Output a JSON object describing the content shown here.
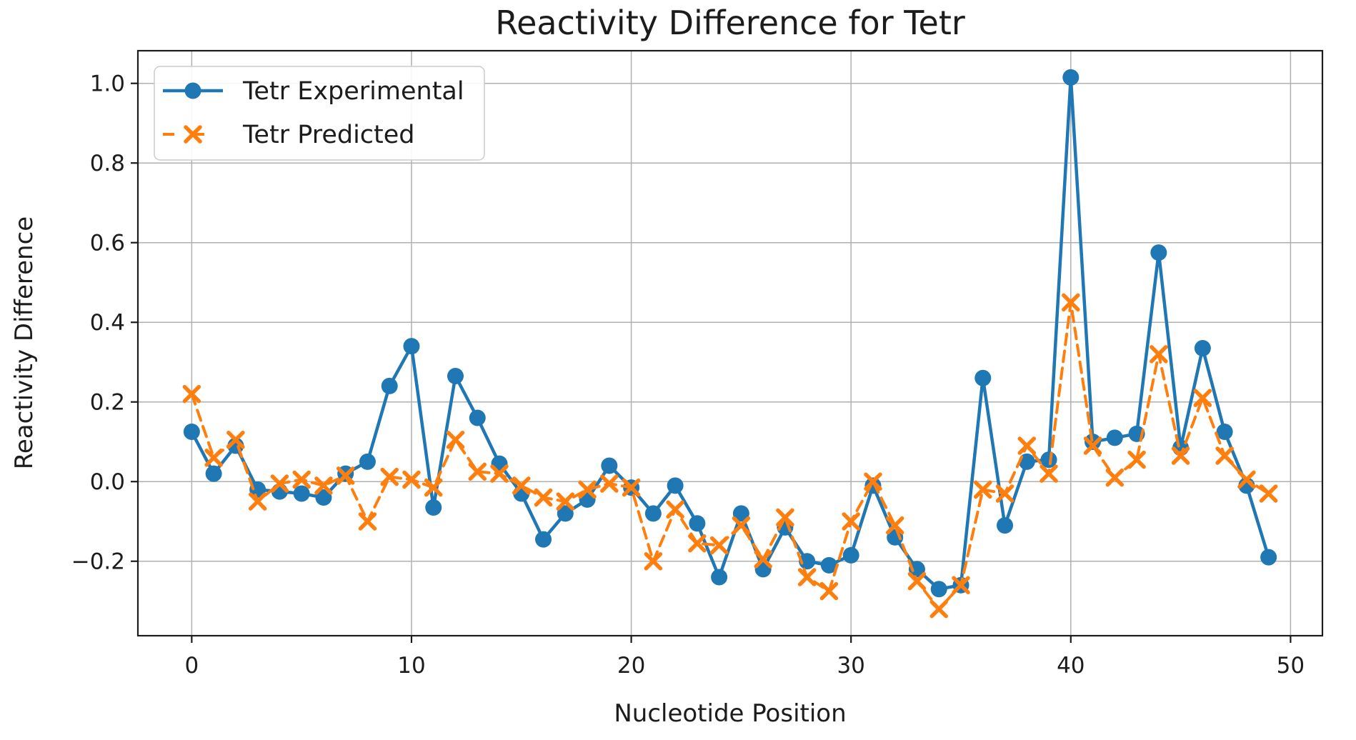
{
  "figure": {
    "background": "#ffffff",
    "title": "Reactivity Difference for Tetr"
  },
  "chart_data": {
    "type": "line",
    "title": "Reactivity Difference for Tetr",
    "xlabel": "Nucleotide Position",
    "ylabel": "Reactivity Difference",
    "grid": true,
    "grid_color": "#b0b0b0",
    "spine_color": "#1c1c1c",
    "legend_position": "upper-left",
    "xlim": [
      -2.45,
      51.45
    ],
    "ylim": [
      -0.387,
      1.082
    ],
    "x_ticks": {
      "values": [
        0,
        10,
        20,
        30,
        40,
        50
      ],
      "labels": [
        "0",
        "10",
        "20",
        "30",
        "40",
        "50"
      ]
    },
    "y_ticks": {
      "values": [
        1.0,
        0.8,
        0.6,
        0.4,
        0.2,
        0.0,
        -0.2
      ],
      "labels": [
        "1.0",
        "0.8",
        "0.6",
        "0.4",
        "0.2",
        "0.0",
        "−0.2"
      ]
    },
    "x": [
      0,
      1,
      2,
      3,
      4,
      5,
      6,
      7,
      8,
      9,
      10,
      11,
      12,
      13,
      14,
      15,
      16,
      17,
      18,
      19,
      20,
      21,
      22,
      23,
      24,
      25,
      26,
      27,
      28,
      29,
      30,
      31,
      32,
      33,
      34,
      35,
      36,
      37,
      38,
      39,
      40,
      41,
      42,
      43,
      44,
      45,
      46,
      47,
      48,
      49
    ],
    "series": [
      {
        "name": "Tetr Experimental",
        "color": "#1f77b4",
        "line": "solid",
        "marker": "circle",
        "values": [
          0.125,
          0.02,
          0.09,
          -0.02,
          -0.025,
          -0.03,
          -0.04,
          0.02,
          0.05,
          0.24,
          0.34,
          -0.065,
          0.265,
          0.16,
          0.045,
          -0.03,
          -0.145,
          -0.08,
          -0.045,
          0.04,
          -0.015,
          -0.08,
          -0.01,
          -0.105,
          -0.24,
          -0.08,
          -0.22,
          -0.115,
          -0.2,
          -0.21,
          -0.185,
          -0.01,
          -0.14,
          -0.22,
          -0.27,
          -0.26,
          0.26,
          -0.11,
          0.05,
          0.055,
          1.015,
          0.1,
          0.11,
          0.12,
          0.575,
          0.085,
          0.335,
          0.125,
          -0.01,
          -0.19
        ]
      },
      {
        "name": "Tetr Predicted",
        "color": "#ff7f0e",
        "line": "dashed",
        "marker": "x",
        "values": [
          0.22,
          0.06,
          0.105,
          -0.05,
          -0.005,
          0.005,
          -0.01,
          0.015,
          -0.1,
          0.012,
          0.005,
          -0.015,
          0.105,
          0.025,
          0.02,
          -0.01,
          -0.04,
          -0.05,
          -0.02,
          -0.005,
          -0.015,
          -0.2,
          -0.07,
          -0.155,
          -0.16,
          -0.11,
          -0.195,
          -0.09,
          -0.24,
          -0.275,
          -0.1,
          0.0,
          -0.11,
          -0.25,
          -0.32,
          -0.26,
          -0.02,
          -0.03,
          0.09,
          0.02,
          0.45,
          0.09,
          0.01,
          0.055,
          0.32,
          0.065,
          0.21,
          0.065,
          0.005,
          -0.03
        ]
      }
    ],
    "legend": {
      "items": [
        {
          "label": "Tetr Experimental"
        },
        {
          "label": "Tetr Predicted"
        }
      ]
    }
  }
}
